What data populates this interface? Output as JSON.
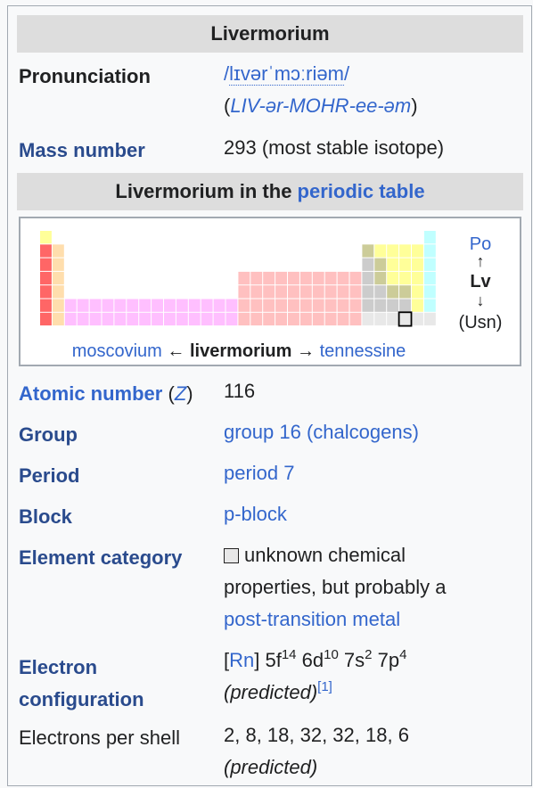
{
  "title": "Livermorium",
  "pronunciation": {
    "label": "Pronunciation",
    "ipa_open": "/",
    "ipa": "lɪvərˈmɔːriəm",
    "ipa_close": "/",
    "respell_open": "(",
    "respell": "LIV-ər-MOHR-ee-əm",
    "respell_close": ")"
  },
  "mass_number": {
    "label": "Mass number",
    "value": "293 (most stable isotope)"
  },
  "periodic_table": {
    "header_prefix": "Livermorium in the ",
    "header_link": "periodic table",
    "prev": "moscovium",
    "left_arrow": "←",
    "current": "livermorium",
    "right_arrow": "→",
    "next": "tennessine",
    "above": "Po",
    "up_arrow": "↑",
    "symbol": "Lv",
    "down_arrow": "↓",
    "below": "(Usn)"
  },
  "atomic_number": {
    "label": "Atomic number",
    "label_paren_open": " (",
    "label_z": "Z",
    "label_paren_close": ")",
    "value": "116"
  },
  "group": {
    "label": "Group",
    "value": "group 16 (chalcogens)"
  },
  "period": {
    "label": "Period",
    "value": "period 7"
  },
  "block": {
    "label": "Block",
    "value": "p-block"
  },
  "category": {
    "label": "Element category",
    "line1": "unknown chemical",
    "line2": "properties, but probably a",
    "link": "post-transition metal"
  },
  "electron_config": {
    "label_line1": "Electron",
    "label_line2": "configuration",
    "bracket_open": "[",
    "core": "Rn",
    "bracket_close": "]",
    "o1": " 5f",
    "e1": "14",
    "o2": " 6d",
    "e2": "10",
    "o3": " 7s",
    "e3": "2",
    "o4": " 7p",
    "e4": "4",
    "note": "(predicted)",
    "ref": "[1]"
  },
  "shells": {
    "label": "Electrons per shell",
    "value": "2, 8, 18, 32, 32, 18, 6",
    "note": "(predicted)"
  },
  "colors": {
    "alkali": "#ff6666",
    "alkaline": "#ffdead",
    "lanthanide": "#ffbfff",
    "transition": "#ffc0c0",
    "post_transition": "#cccccc",
    "metalloid": "#cccc99",
    "nonmetal": "#ffff99",
    "halogen": "#ffff99",
    "noble": "#c0ffff",
    "unknown": "#e8e8e8",
    "hydrogen": "#ffff99"
  }
}
